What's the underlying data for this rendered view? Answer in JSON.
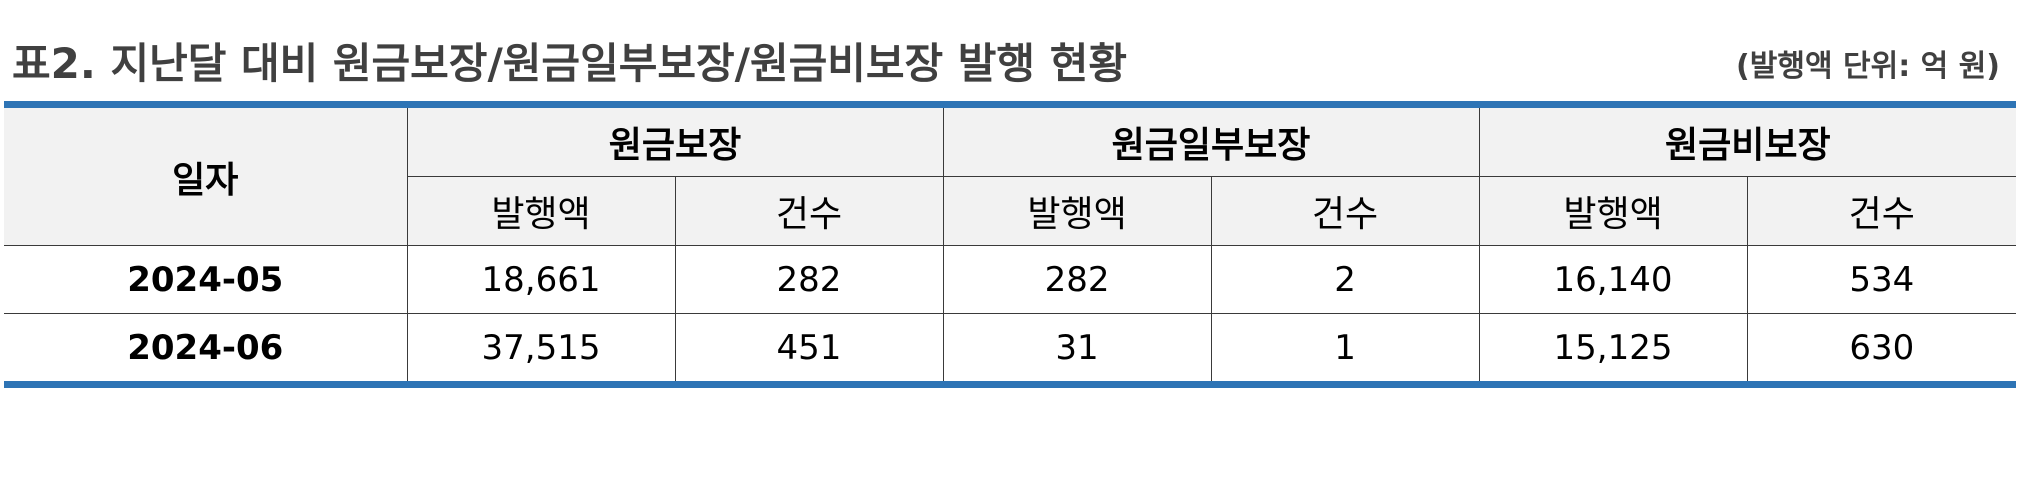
{
  "title": "표2. 지난달 대비 원금보장/원금일부보장/원금비보장 발행 현황",
  "unit_note": "(발행액 단위: 억 원)",
  "table": {
    "date_header": "일자",
    "groups": [
      "원금보장",
      "원금일부보장",
      "원금비보장"
    ],
    "sub_headers": [
      "발행액",
      "건수",
      "발행액",
      "건수",
      "발행액",
      "건수"
    ],
    "rows": [
      {
        "date": "2024-05",
        "cells": [
          "18,661",
          "282",
          "282",
          "2",
          "16,140",
          "534"
        ]
      },
      {
        "date": "2024-06",
        "cells": [
          "37,515",
          "451",
          "31",
          "1",
          "15,125",
          "630"
        ]
      }
    ]
  },
  "colors": {
    "accent_border": "#2e74b5",
    "header_bg": "#f2f2f2",
    "title_text": "#404040"
  }
}
